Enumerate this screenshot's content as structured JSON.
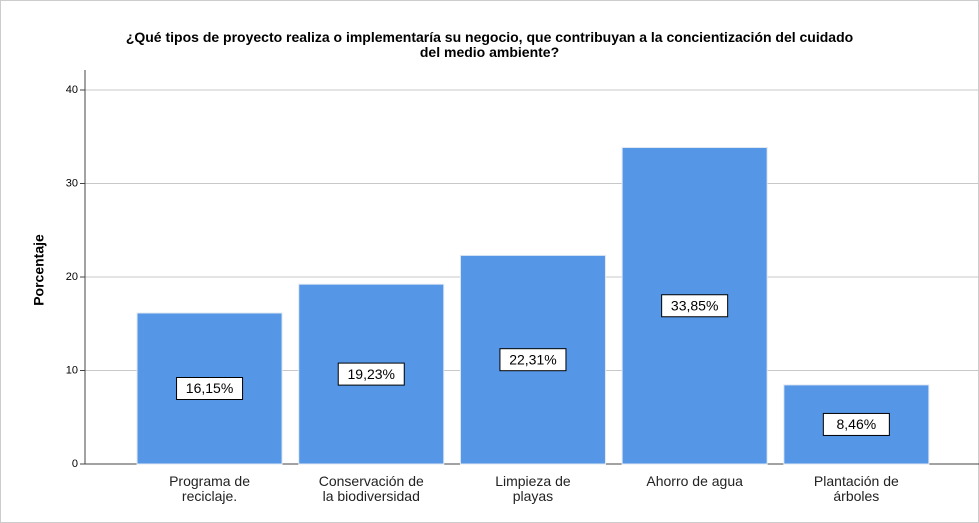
{
  "chart_data": {
    "type": "bar",
    "title": "¿Qué tipos de proyecto realiza o implementaría su negocio, que contribuyan a la concientización del cuidado\ndel medio ambiente?",
    "y_label": "Porcentaje",
    "categories": [
      "Programa de\nreciclaje.",
      "Conservación de\nla biodiversidad",
      "Limpieza de\nplayas",
      "Ahorro de agua",
      "Plantación de\nárboles"
    ],
    "values": [
      16.15,
      19.23,
      22.31,
      33.85,
      8.46
    ],
    "value_labels": [
      "16,15%",
      "19,23%",
      "22,31%",
      "33,85%",
      "8,46%"
    ],
    "color": "#5596e6",
    "ylim": [
      0,
      40
    ],
    "yticks": [
      0,
      10,
      20,
      30,
      40
    ],
    "grid": true
  }
}
